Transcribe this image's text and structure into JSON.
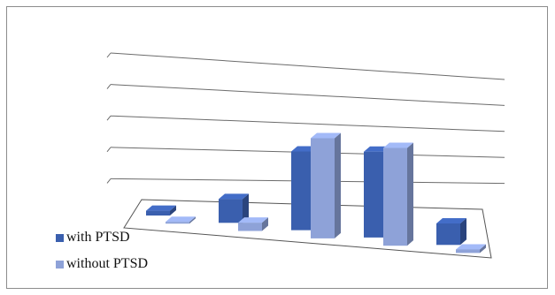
{
  "chart_data": {
    "type": "bar",
    "categories": [
      "",
      "",
      "",
      "",
      ""
    ],
    "series": [
      {
        "name": "with PTSD",
        "color": "#3a5fae",
        "values": [
          0.2,
          1.0,
          3.3,
          3.6,
          0.9
        ]
      },
      {
        "name": "without PTSD",
        "color": "#8ea2d8",
        "values": [
          0.05,
          0.35,
          4.2,
          4.1,
          0.15
        ]
      }
    ],
    "title": "",
    "xlabel": "",
    "ylabel": "",
    "ylim": [
      0,
      5
    ],
    "y_ticks": [
      0,
      1,
      2,
      3,
      4,
      5
    ],
    "grid": true,
    "legend_position": "bottom-left"
  }
}
